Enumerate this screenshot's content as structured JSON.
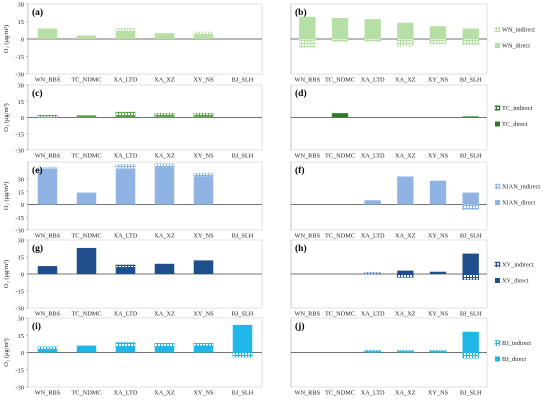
{
  "figure": {
    "ylabel": "O₃ (μg/m³)",
    "categories": [
      "WN_RBS",
      "TC_NDMC",
      "XA_LTD",
      "XA_XZ",
      "XY_NS",
      "BJ_SLH"
    ],
    "yticks": [
      -30,
      -15,
      0,
      15,
      30
    ]
  },
  "legends": [
    {
      "indirect": "WN_indirect",
      "direct": "WN_direct"
    },
    {
      "indirect": "TC_indirect",
      "direct": "TC_direct"
    },
    {
      "indirect": "XIAN_indirect",
      "direct": "XIAN_direct"
    },
    {
      "indirect": "XY_indirect",
      "direct": "XY_direct"
    },
    {
      "indirect": "BJ_indirect",
      "direct": "BJ_direct"
    }
  ],
  "chart_data": [
    {
      "type": "bar",
      "panel": "(a)",
      "source": "WN",
      "color": "#b6dfa6",
      "ylim": [
        -30,
        30
      ],
      "series": [
        {
          "name": "WN_direct",
          "values": [
            9,
            3,
            6,
            5,
            4,
            0
          ]
        },
        {
          "name": "WN_indirect",
          "values": [
            0,
            0,
            3,
            0,
            2,
            0
          ]
        }
      ]
    },
    {
      "type": "bar",
      "panel": "(b)",
      "source": "WN",
      "color": "#b6dfa6",
      "ylim": [
        -30,
        30
      ],
      "series": [
        {
          "name": "WN_direct",
          "values": [
            19,
            18,
            17,
            14,
            11,
            9
          ]
        },
        {
          "name": "WN_indirect",
          "values": [
            -7,
            -2,
            -2,
            -6,
            -4,
            -5
          ]
        }
      ]
    },
    {
      "type": "bar",
      "panel": "(c)",
      "source": "TC",
      "color": "#5aa04a",
      "ylim": [
        -30,
        30
      ],
      "series": [
        {
          "name": "TC_direct",
          "values": [
            0,
            2,
            2,
            1,
            1,
            0
          ]
        },
        {
          "name": "TC_indirect",
          "values": [
            2,
            0,
            3,
            3,
            3,
            0
          ]
        }
      ]
    },
    {
      "type": "bar",
      "panel": "(d)",
      "source": "TC",
      "color": "#2e7d24",
      "ylim": [
        -30,
        30
      ],
      "series": [
        {
          "name": "TC_direct",
          "values": [
            0,
            4,
            0,
            0,
            0,
            1
          ]
        },
        {
          "name": "TC_indirect",
          "values": [
            0,
            0,
            0,
            0,
            0,
            0
          ]
        }
      ]
    },
    {
      "type": "bar",
      "panel": "(e)",
      "source": "XIAN",
      "color": "#8fb4e3",
      "ylim": [
        -30,
        50
      ],
      "series": [
        {
          "name": "XIAN_direct",
          "values": [
            42,
            14,
            42,
            44,
            33,
            0
          ]
        },
        {
          "name": "XIAN_indirect",
          "values": [
            2,
            0,
            5,
            4,
            4,
            0
          ]
        }
      ]
    },
    {
      "type": "bar",
      "panel": "(f)",
      "source": "XIAN",
      "color": "#8fb4e3",
      "ylim": [
        -30,
        50
      ],
      "series": [
        {
          "name": "XIAN_direct",
          "values": [
            0,
            0,
            5,
            33,
            28,
            14
          ]
        },
        {
          "name": "XIAN_indirect",
          "values": [
            0,
            0,
            0,
            0,
            0,
            -6
          ]
        }
      ]
    },
    {
      "type": "bar",
      "panel": "(g)",
      "source": "XY",
      "color": "#1f4e8c",
      "ylim": [
        -30,
        30
      ],
      "series": [
        {
          "name": "XY_direct",
          "values": [
            7,
            23,
            6,
            9,
            12,
            0
          ]
        },
        {
          "name": "XY_indirect",
          "values": [
            0,
            0,
            2,
            0,
            0,
            0
          ]
        }
      ]
    },
    {
      "type": "bar",
      "panel": "(h)",
      "source": "XY",
      "color": "#1f4e8c",
      "ylim": [
        -30,
        30
      ],
      "series": [
        {
          "name": "XY_direct",
          "values": [
            0,
            0,
            0,
            3,
            2,
            18
          ]
        },
        {
          "name": "XY_indirect",
          "values": [
            0,
            0,
            1,
            -3,
            0,
            -5
          ]
        }
      ]
    },
    {
      "type": "bar",
      "panel": "(i)",
      "source": "BJ",
      "color": "#1fb7ea",
      "ylim": [
        -30,
        30
      ],
      "series": [
        {
          "name": "BJ_direct",
          "values": [
            3,
            6,
            5,
            5,
            6,
            24
          ]
        },
        {
          "name": "BJ_indirect",
          "values": [
            2,
            0,
            4,
            3,
            2,
            -4
          ]
        }
      ]
    },
    {
      "type": "bar",
      "panel": "(j)",
      "source": "BJ",
      "color": "#1fb7ea",
      "ylim": [
        -30,
        30
      ],
      "series": [
        {
          "name": "BJ_direct",
          "values": [
            0,
            0,
            1,
            1,
            1,
            18
          ]
        },
        {
          "name": "BJ_indirect",
          "values": [
            0,
            0,
            1,
            1,
            1,
            -5
          ]
        }
      ]
    }
  ]
}
